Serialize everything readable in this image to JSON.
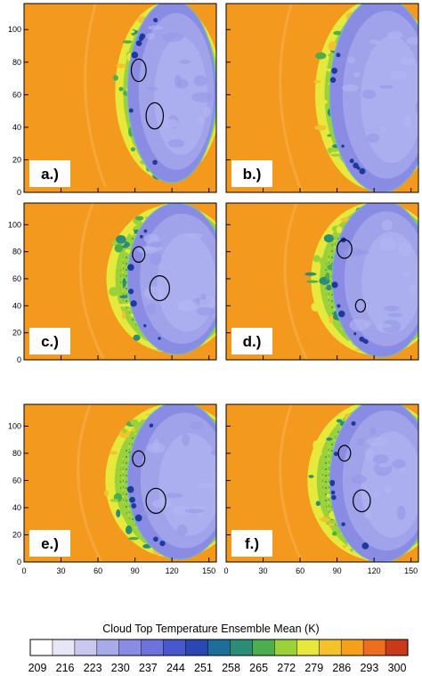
{
  "chart_data": {
    "type": "heatmap",
    "title": "Cloud Top Temperature Ensemble Mean",
    "colorbar": {
      "label": "Cloud Top Temperature Ensemble Mean  (K)",
      "ticks": [
        "209",
        "216",
        "223",
        "230",
        "237",
        "244",
        "251",
        "258",
        "265",
        "272",
        "279",
        "286",
        "293",
        "300"
      ],
      "colors": [
        "#ffffff",
        "#e6e6f7",
        "#c9c9f0",
        "#a9aaea",
        "#8a8ce4",
        "#6e72dc",
        "#4a56cc",
        "#2a48b4",
        "#1e6e9c",
        "#2a8e76",
        "#4cae4c",
        "#9bd23a",
        "#e6e83c",
        "#f4c22a",
        "#f5a019",
        "#ec6e1e",
        "#c83a1a"
      ],
      "background_color": "#f39a1e"
    },
    "x_ticks": [
      "0",
      "30",
      "60",
      "90",
      "120",
      "150"
    ],
    "y_ticks": [
      "0",
      "20",
      "40",
      "60",
      "80",
      "100"
    ],
    "xlim": [
      0,
      156
    ],
    "ylim": [
      0,
      116
    ],
    "panels": [
      {
        "label": "a.)",
        "circles": [
          {
            "x": 93,
            "y": 75,
            "r": 6
          },
          {
            "x": 106,
            "y": 47,
            "r": 7
          }
        ]
      },
      {
        "label": "b.)",
        "circles": []
      },
      {
        "label": "c.)",
        "circles": [
          {
            "x": 93,
            "y": 78,
            "r": 5
          },
          {
            "x": 110,
            "y": 53,
            "r": 8
          }
        ]
      },
      {
        "label": "d.)",
        "circles": [
          {
            "x": 96,
            "y": 82,
            "r": 6
          },
          {
            "x": 109,
            "y": 40,
            "r": 4
          }
        ]
      },
      {
        "label": "e.)",
        "circles": [
          {
            "x": 93,
            "y": 76,
            "r": 5
          },
          {
            "x": 107,
            "y": 45,
            "r": 8
          }
        ]
      },
      {
        "label": "f.)",
        "circles": [
          {
            "x": 96,
            "y": 80,
            "r": 5
          },
          {
            "x": 110,
            "y": 45,
            "r": 7
          }
        ]
      }
    ]
  }
}
